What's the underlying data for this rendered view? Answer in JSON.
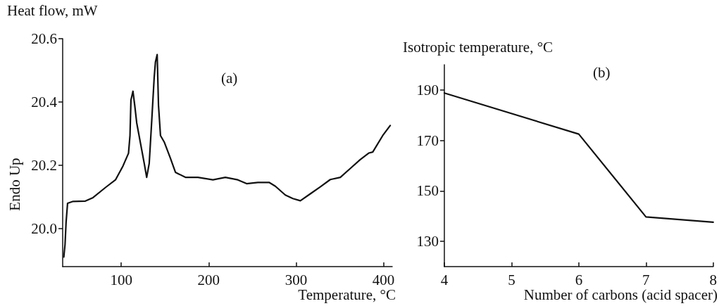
{
  "chart_data": [
    {
      "type": "line",
      "ylabel": "Heat flow, mW",
      "xlabel": "Temperature, °C",
      "annotations": [
        "(a)",
        "Endo Up"
      ],
      "xlim": [
        33,
        410
      ],
      "xticks": [
        100,
        200,
        300,
        400
      ],
      "ylim": [
        19.88,
        20.6
      ],
      "yticks": [
        {
          "value": 20,
          "label": "20.0"
        },
        20.2,
        20.4,
        20.6
      ],
      "grid": false,
      "marker": "none",
      "line_style": "solid",
      "series": [
        {
          "color": "#111111",
          "x": [
            34.3,
            35.7,
            36.9,
            38.6,
            44.9,
            59,
            67.7,
            82,
            93.4,
            102,
            108.3,
            110,
            111.1,
            113.4,
            115.4,
            117.7,
            122,
            126.3,
            129.1,
            132,
            134.9,
            137.7,
            139.1,
            141.1,
            142.6,
            144.9,
            149.1,
            156.3,
            162,
            173.4,
            187.7,
            204.9,
            219.1,
            233.4,
            243.4,
            256.3,
            269.1,
            276.3,
            287.7,
            296.3,
            304.9,
            316.3,
            327.7,
            339.1,
            350.6,
            362,
            373.4,
            383.4,
            387.7,
            399.1,
            407.7
          ],
          "values": [
            19.91,
            19.95,
            20.02,
            20.08,
            20.086,
            20.087,
            20.098,
            20.13,
            20.154,
            20.198,
            20.238,
            20.294,
            20.406,
            20.434,
            20.39,
            20.334,
            20.27,
            20.206,
            20.162,
            20.206,
            20.342,
            20.478,
            20.526,
            20.55,
            20.39,
            20.294,
            20.274,
            20.222,
            20.178,
            20.162,
            20.162,
            20.154,
            20.162,
            20.154,
            20.142,
            20.146,
            20.146,
            20.134,
            20.106,
            20.095,
            20.088,
            20.11,
            20.132,
            20.155,
            20.162,
            20.19,
            20.218,
            20.239,
            20.242,
            20.294,
            20.326
          ]
        }
      ]
    },
    {
      "type": "line",
      "ylabel": "Isotropic temperature, °C",
      "xlabel": "Number of carbons (acid spacer)",
      "annotations": [
        "(b)"
      ],
      "xlim": [
        4,
        8
      ],
      "xticks": [
        4,
        5,
        6,
        7,
        8
      ],
      "ylim": [
        120,
        200
      ],
      "yticks": [
        130,
        150,
        170,
        190
      ],
      "grid": false,
      "marker": "none",
      "line_style": "solid",
      "series": [
        {
          "color": "#111111",
          "x": [
            4,
            6,
            7,
            8
          ],
          "values": [
            188.8,
            172.5,
            139.7,
            137.6
          ]
        }
      ]
    }
  ]
}
